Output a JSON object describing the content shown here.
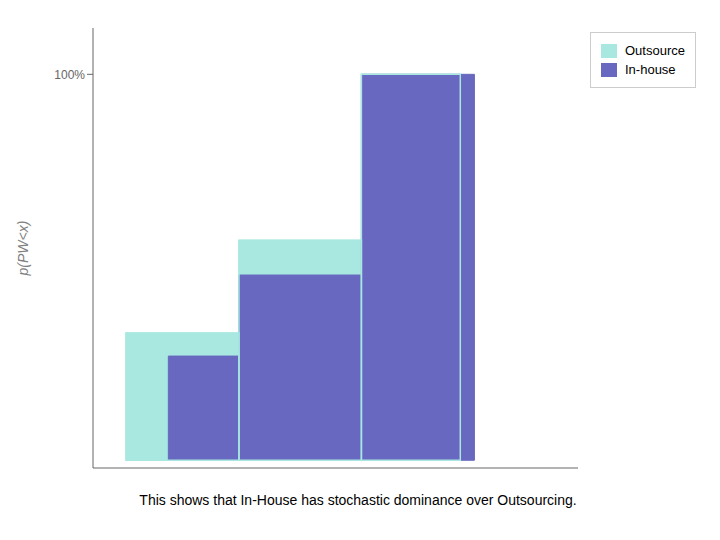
{
  "chart_data": {
    "type": "step",
    "ylabel": "p(PW<x)",
    "annotation": "This shows that In-House has stochastic dominance over Outsourcing.",
    "xlim": [
      0.65,
      5.8
    ],
    "ylim": [
      -0.02,
      1.12
    ],
    "yticks": [
      {
        "value": 1.0,
        "label": "100%"
      }
    ],
    "tick_labels": "y",
    "grid": false,
    "legend": "upper right",
    "series": [
      {
        "name": "Outsource",
        "color": "#a8e8e0",
        "x_start": [
          1.0,
          2.2,
          3.5
        ],
        "x_end": [
          2.2,
          3.5,
          4.55
        ],
        "values": [
          0.33,
          0.57,
          1.0
        ]
      },
      {
        "name": "In-house",
        "color": "#6868c0",
        "x_start": [
          1.45,
          2.2,
          3.5
        ],
        "x_end": [
          2.2,
          3.5,
          4.7
        ],
        "values": [
          0.27,
          0.48,
          1.0
        ]
      }
    ]
  }
}
